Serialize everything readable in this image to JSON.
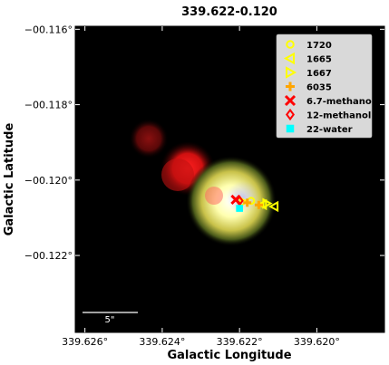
{
  "chart_data": {
    "type": "scatter",
    "title": "339.622-0.120",
    "xlabel": "Galactic Longitude",
    "ylabel": "Galactic Latitude",
    "xlim": [
      339.62625,
      339.61825
    ],
    "ylim": [
      -0.12404,
      -0.11592
    ],
    "x_ticks": [
      339.626,
      339.624,
      339.622,
      339.62
    ],
    "x_tick_labels": [
      "339.626°",
      "339.624°",
      "339.622°",
      "339.620°"
    ],
    "y_ticks": [
      -0.116,
      -0.118,
      -0.12,
      -0.122
    ],
    "y_tick_labels": [
      "−00.116°",
      "−00.118°",
      "−00.120°",
      "−00.122°"
    ],
    "grid": false,
    "legend_position": "top-right",
    "scale_bar": {
      "label": "5\""
    },
    "background_image": "rgb-composite",
    "series": [
      {
        "name": "1720",
        "marker": "circle",
        "color": "#ffff00",
        "points": [
          [
            339.6217,
            -0.12055
          ]
        ]
      },
      {
        "name": "1665",
        "marker": "triangle-left",
        "color": "#ffff00",
        "points": [
          [
            339.6214,
            -0.12065
          ],
          [
            339.6211,
            -0.1207
          ]
        ]
      },
      {
        "name": "1667",
        "marker": "triangle-right",
        "color": "#ffff00",
        "points": [
          [
            339.6219,
            -0.12058
          ],
          [
            339.6213,
            -0.12062
          ]
        ]
      },
      {
        "name": "6035",
        "marker": "plus",
        "color": "#ffa500",
        "points": [
          [
            339.6218,
            -0.1206
          ],
          [
            339.6215,
            -0.12066
          ]
        ]
      },
      {
        "name": "6.7-methanol",
        "marker": "x",
        "color": "#ff0000",
        "points": [
          [
            339.6221,
            -0.12052
          ]
        ]
      },
      {
        "name": "12-methanol",
        "marker": "diamond",
        "color": "#ff0000",
        "points": [
          [
            339.622,
            -0.12055
          ]
        ]
      },
      {
        "name": "22-water",
        "marker": "square",
        "color": "#00ffff",
        "points": [
          [
            339.622,
            -0.12075
          ]
        ]
      }
    ]
  }
}
